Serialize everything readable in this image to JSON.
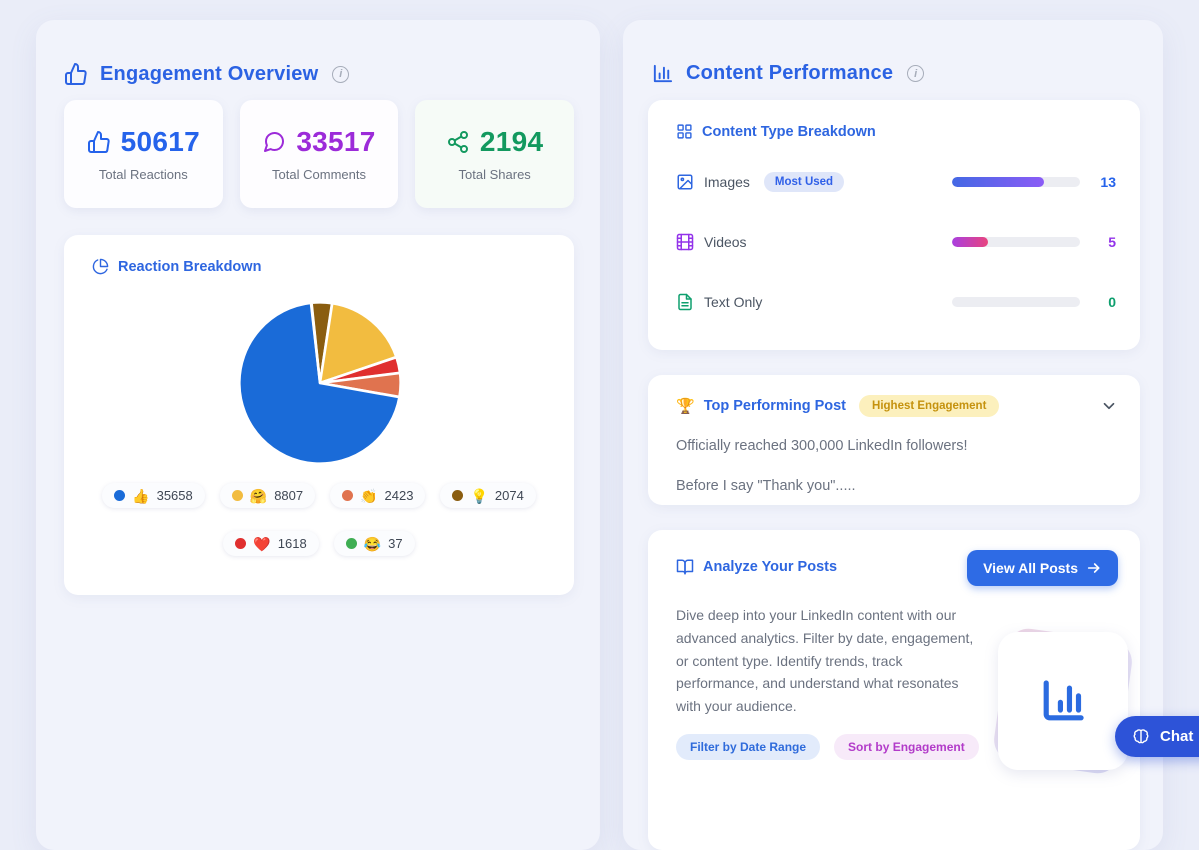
{
  "panels": {
    "engagement": {
      "title": "Engagement Overview",
      "stats": [
        {
          "value": "50617",
          "label": "Total Reactions",
          "color": "#2563eb"
        },
        {
          "value": "33517",
          "label": "Total Comments",
          "color": "#9c2bd9"
        },
        {
          "value": "2194",
          "label": "Total Shares",
          "color": "#13995f"
        }
      ],
      "reaction_section_title": "Reaction Breakdown"
    },
    "content": {
      "title": "Content Performance",
      "breakdown": {
        "title": "Content Type Breakdown",
        "rows": [
          {
            "label": "Images",
            "badge": "Most Used",
            "value": 13,
            "value_color": "#2563eb",
            "bar_gradient": [
              "#4468e4",
              "#8b5cf6"
            ]
          },
          {
            "label": "Videos",
            "value": 5,
            "value_color": "#9333ea",
            "bar_gradient": [
              "#a93fe0",
              "#e8447e"
            ]
          },
          {
            "label": "Text Only",
            "value": 0,
            "value_color": "#0e9f6e",
            "bar_gradient": []
          }
        ]
      },
      "top_post": {
        "title": "Top Performing Post",
        "badge": "Highest Engagement",
        "trophy_icon": "🏆",
        "line1": "Officially reached 300,000 LinkedIn followers!",
        "line2": "Before I say \"Thank you\"....."
      },
      "analyze": {
        "title": "Analyze Your Posts",
        "button": "View All Posts",
        "description": "Dive deep into your LinkedIn content with our advanced analytics. Filter by date, engagement, or content type. Identify trends, track performance, and understand what resonates with your audience.",
        "tags": [
          "Filter by Date Range",
          "Sort by Engagement"
        ]
      }
    }
  },
  "chat_button": {
    "label": "Chat",
    "icon": "brain-icon"
  },
  "chart_data": {
    "type": "pie",
    "title": "Reaction Breakdown",
    "total": 50617,
    "legend": [
      {
        "emoji": "👍",
        "name": "like",
        "value": "35658",
        "color": "#1a6bd8"
      },
      {
        "emoji": "🤗",
        "name": "support",
        "value": "8807",
        "color": "#f2bc40"
      },
      {
        "emoji": "👏",
        "name": "celebrate",
        "value": "2423",
        "color": "#e0734f"
      },
      {
        "emoji": "💡",
        "name": "insightful",
        "value": "2074",
        "color": "#8a5d10"
      },
      {
        "emoji": "❤️",
        "name": "love",
        "value": "1618",
        "color": "#e02f2f"
      },
      {
        "emoji": "😂",
        "name": "funny",
        "value": "37",
        "color": "#3fae53"
      }
    ],
    "slices_clockwise_from_top": [
      {
        "name": "insightful",
        "value": 2074,
        "color": "#8a5d10"
      },
      {
        "name": "support",
        "value": 8807,
        "color": "#f2bc40"
      },
      {
        "name": "love",
        "value": 1618,
        "color": "#e02f2f"
      },
      {
        "name": "celebrate",
        "value": 2423,
        "color": "#e0734f"
      },
      {
        "name": "like",
        "value": 35658,
        "color": "#1a6bd8"
      },
      {
        "name": "funny",
        "value": 37,
        "color": "#3fae53"
      }
    ],
    "start_angle_deg": -6,
    "legend_position": "bottom",
    "grid": false
  }
}
